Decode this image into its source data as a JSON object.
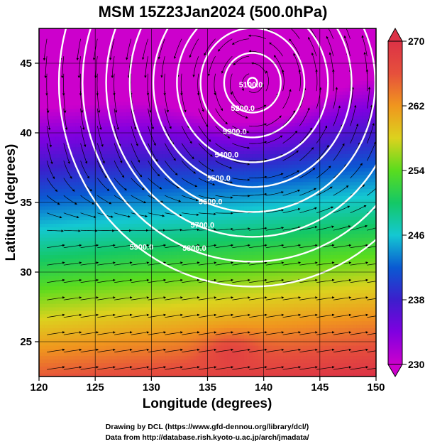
{
  "chart_data": {
    "type": "heatmap",
    "title": "MSM 15Z23Jan2024 (500.0hPa)",
    "xlabel": "Longitude (degrees)",
    "ylabel": "Latitude  (degrees)",
    "xlim": [
      120,
      150
    ],
    "ylim": [
      22.5,
      47.5
    ],
    "x_ticks": [
      120,
      125,
      130,
      135,
      140,
      145,
      150
    ],
    "y_ticks": [
      25,
      30,
      35,
      40,
      45
    ],
    "colorbar": {
      "min": 230,
      "max": 270,
      "ticks": [
        230,
        238,
        246,
        254,
        262,
        270
      ],
      "colors": [
        "#cc00cc",
        "#8000e0",
        "#3c1ecc",
        "#0a5ad2",
        "#14c8d2",
        "#14c866",
        "#5adc1e",
        "#dcd21e",
        "#f0961e",
        "#e6503c",
        "#dc3246"
      ]
    },
    "temperature_field": {
      "cold_core": [
        139,
        43.7,
        230
      ],
      "warm_spot": [
        137,
        24.5,
        267
      ],
      "notes": "temperature increases southward"
    },
    "height_contours": [
      {
        "value": 5100,
        "label": "5100.0"
      },
      {
        "value": 5200,
        "label": "5200.0"
      },
      {
        "value": 5300,
        "label": "5300.0"
      },
      {
        "value": 5400,
        "label": "5400.0"
      },
      {
        "value": 5500,
        "label": "5500.0"
      },
      {
        "value": 5600,
        "label": "5600.0"
      },
      {
        "value": 5700,
        "label": "5700.0"
      },
      {
        "value": 5800,
        "label": "5800.0"
      },
      {
        "value": 5900,
        "label": "5900.0"
      }
    ],
    "wind": "streamlines with arrows; cyclonic around low centered near 139E 43.5N; westerly south of 35N"
  },
  "credits": {
    "line1": "Drawing by DCL (https://www.gfd-dennou.org/library/dcl/)",
    "line2": "Data from http://database.rish.kyoto-u.ac.jp/arch/jmadata/"
  }
}
